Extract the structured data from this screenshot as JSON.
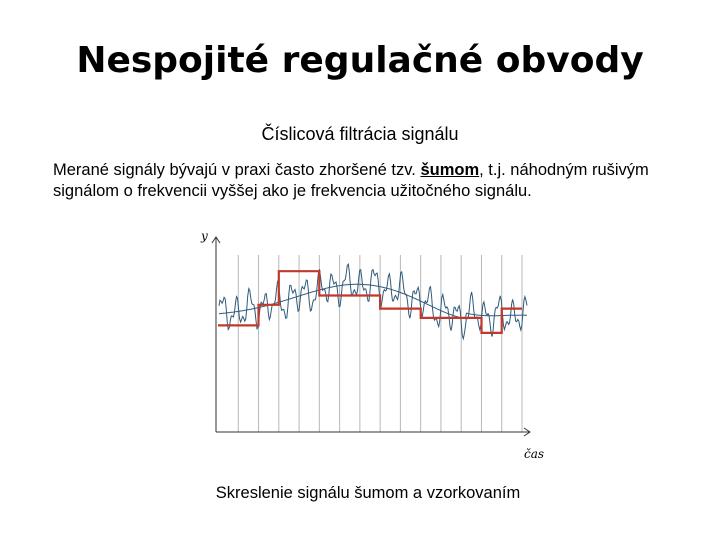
{
  "slide": {
    "title": "Nespojité regulačné obvody",
    "subtitle": "Číslicová filtrácia signálu",
    "paragraph": {
      "before_term": "Merané signály bývajú v praxi často zhoršené tzv. ",
      "term": "šumom",
      "after_term": ", t.j. náhodným rušivým",
      "line2": "signálom o frekvencii vyššej ako je frekvencia užitočného signálu."
    },
    "caption": "Skreslenie signálu šumom a vzorkovaním"
  },
  "figure": {
    "y_axis_label": "y",
    "x_axis_label": "čas",
    "colors": {
      "axis": "#333333",
      "grid": "#b8b8b8",
      "signal": "#2f5a7a",
      "noisy_signal": "#2f5a7a",
      "sampled_signal": "#c0392b"
    },
    "sample_steps": [
      {
        "t": 0,
        "y": 0.57
      },
      {
        "t": 1,
        "y": 0.57
      },
      {
        "t": 2,
        "y": 0.68
      },
      {
        "t": 3,
        "y": 0.86
      },
      {
        "t": 4,
        "y": 0.86
      },
      {
        "t": 5,
        "y": 0.73
      },
      {
        "t": 6,
        "y": 0.73
      },
      {
        "t": 7,
        "y": 0.73
      },
      {
        "t": 8,
        "y": 0.66
      },
      {
        "t": 9,
        "y": 0.66
      },
      {
        "t": 10,
        "y": 0.61
      },
      {
        "t": 11,
        "y": 0.61
      },
      {
        "t": 12,
        "y": 0.61
      },
      {
        "t": 13,
        "y": 0.53
      },
      {
        "t": 14,
        "y": 0.66
      }
    ]
  }
}
